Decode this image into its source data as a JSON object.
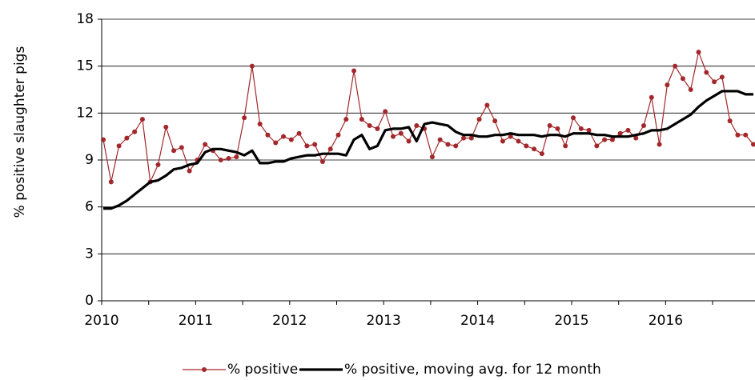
{
  "chart_data": {
    "type": "line",
    "y_label": "% positive slaughter pigs",
    "categories": [
      "2010",
      null,
      null,
      null,
      null,
      null,
      null,
      null,
      null,
      null,
      null,
      null,
      "2011",
      null,
      null,
      null,
      null,
      null,
      null,
      null,
      null,
      null,
      null,
      null,
      "2012",
      null,
      null,
      null,
      null,
      null,
      null,
      null,
      null,
      null,
      null,
      null,
      "2013",
      null,
      null,
      null,
      null,
      null,
      null,
      null,
      null,
      null,
      null,
      null,
      "2014",
      null,
      null,
      null,
      null,
      null,
      null,
      null,
      null,
      null,
      null,
      null,
      "2015",
      null,
      null,
      null,
      null,
      null,
      null,
      null,
      null,
      null,
      null,
      null,
      "2016",
      null,
      null,
      null,
      null,
      null,
      null,
      null,
      null,
      null,
      null,
      null
    ],
    "series": [
      {
        "name": "% positive",
        "color": "#a3282b",
        "markers": true,
        "values": [
          10.3,
          7.6,
          9.9,
          10.4,
          10.8,
          11.6,
          7.6,
          8.7,
          11.1,
          9.6,
          9.8,
          8.3,
          9.0,
          10.0,
          9.6,
          9.0,
          9.1,
          9.2,
          11.7,
          15.0,
          11.3,
          10.6,
          10.1,
          10.5,
          10.3,
          10.7,
          9.9,
          10.0,
          8.9,
          9.7,
          10.6,
          11.6,
          14.7,
          11.6,
          11.2,
          11.0,
          12.1,
          10.5,
          10.7,
          10.2,
          11.2,
          11.0,
          9.2,
          10.3,
          10.0,
          9.9,
          10.4,
          10.4,
          11.6,
          12.5,
          11.5,
          10.2,
          10.5,
          10.2,
          9.9,
          9.7,
          9.4,
          11.2,
          11.0,
          9.9,
          11.7,
          11.0,
          10.9,
          9.9,
          10.3,
          10.3,
          10.7,
          10.9,
          10.4,
          11.2,
          13.0,
          10.0,
          13.8,
          15.0,
          14.2,
          13.5,
          15.9,
          14.6,
          14.0,
          14.3,
          11.5,
          10.6,
          10.6,
          10.0
        ]
      },
      {
        "name": "% positive, moving avg. for 12 month",
        "color": "#000000",
        "markers": false,
        "values": [
          5.9,
          5.9,
          6.1,
          6.4,
          6.8,
          7.2,
          7.6,
          7.7,
          8.0,
          8.4,
          8.5,
          8.7,
          8.8,
          9.5,
          9.7,
          9.7,
          9.6,
          9.5,
          9.3,
          9.6,
          8.8,
          8.8,
          8.9,
          8.9,
          9.1,
          9.2,
          9.3,
          9.3,
          9.4,
          9.4,
          9.4,
          9.3,
          10.3,
          10.6,
          9.7,
          9.9,
          10.9,
          11.0,
          11.0,
          11.1,
          10.2,
          11.3,
          11.4,
          11.3,
          11.2,
          10.8,
          10.6,
          10.6,
          10.5,
          10.5,
          10.6,
          10.6,
          10.7,
          10.6,
          10.6,
          10.6,
          10.5,
          10.6,
          10.6,
          10.5,
          10.7,
          10.7,
          10.7,
          10.6,
          10.6,
          10.5,
          10.5,
          10.5,
          10.6,
          10.7,
          10.9,
          10.9,
          11.0,
          11.3,
          11.6,
          11.9,
          12.4,
          12.8,
          13.1,
          13.4,
          13.4,
          13.4,
          13.2,
          13.2
        ]
      }
    ],
    "ylim": [
      0,
      18
    ],
    "yticks": [
      0,
      3,
      6,
      9,
      12,
      15,
      18
    ],
    "grid": true,
    "legend": "bottom"
  }
}
